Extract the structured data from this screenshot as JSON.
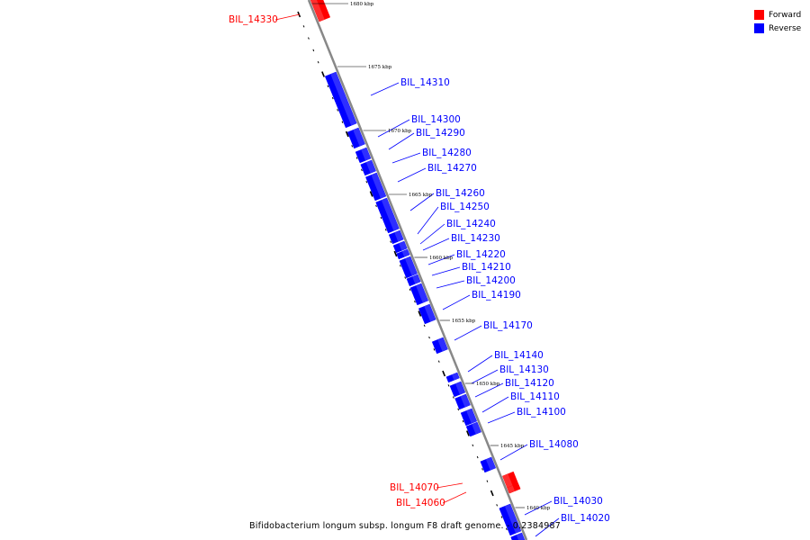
{
  "colors": {
    "forward": "#ff0000",
    "reverse": "#0000ff",
    "backbone": "#888888"
  },
  "legend": [
    {
      "label": "Forward",
      "color": "#ff0000"
    },
    {
      "label": "Reverse",
      "color": "#0000ff"
    }
  ],
  "caption": "Bifidobacterium longum subsp. longum F8 draft genome. - 0.2384987",
  "scale_labels": [
    "1680 kbp",
    "1675 kbp",
    "1670 kbp",
    "1665 kbp",
    "1660 kbp",
    "1655 kbp",
    "1650 kbp",
    "1645 kbp",
    "1640 kbp"
  ],
  "genes": [
    {
      "name": "BIL_14330",
      "strand": "forward"
    },
    {
      "name": "BIL_14310",
      "strand": "reverse"
    },
    {
      "name": "BIL_14300",
      "strand": "reverse"
    },
    {
      "name": "BIL_14290",
      "strand": "reverse"
    },
    {
      "name": "BIL_14280",
      "strand": "reverse"
    },
    {
      "name": "BIL_14270",
      "strand": "reverse"
    },
    {
      "name": "BIL_14260",
      "strand": "reverse"
    },
    {
      "name": "BIL_14250",
      "strand": "reverse"
    },
    {
      "name": "BIL_14240",
      "strand": "reverse"
    },
    {
      "name": "BIL_14230",
      "strand": "reverse"
    },
    {
      "name": "BIL_14220",
      "strand": "reverse"
    },
    {
      "name": "BIL_14210",
      "strand": "reverse"
    },
    {
      "name": "BIL_14200",
      "strand": "reverse"
    },
    {
      "name": "BIL_14190",
      "strand": "reverse"
    },
    {
      "name": "BIL_14170",
      "strand": "reverse"
    },
    {
      "name": "BIL_14140",
      "strand": "reverse"
    },
    {
      "name": "BIL_14130",
      "strand": "reverse"
    },
    {
      "name": "BIL_14120",
      "strand": "reverse"
    },
    {
      "name": "BIL_14110",
      "strand": "reverse"
    },
    {
      "name": "BIL_14100",
      "strand": "reverse"
    },
    {
      "name": "BIL_14080",
      "strand": "reverse"
    },
    {
      "name": "BIL_14070",
      "strand": "forward"
    },
    {
      "name": "BIL_14060",
      "strand": "forward"
    },
    {
      "name": "BIL_14030",
      "strand": "reverse"
    },
    {
      "name": "BIL_14020",
      "strand": "reverse"
    }
  ]
}
